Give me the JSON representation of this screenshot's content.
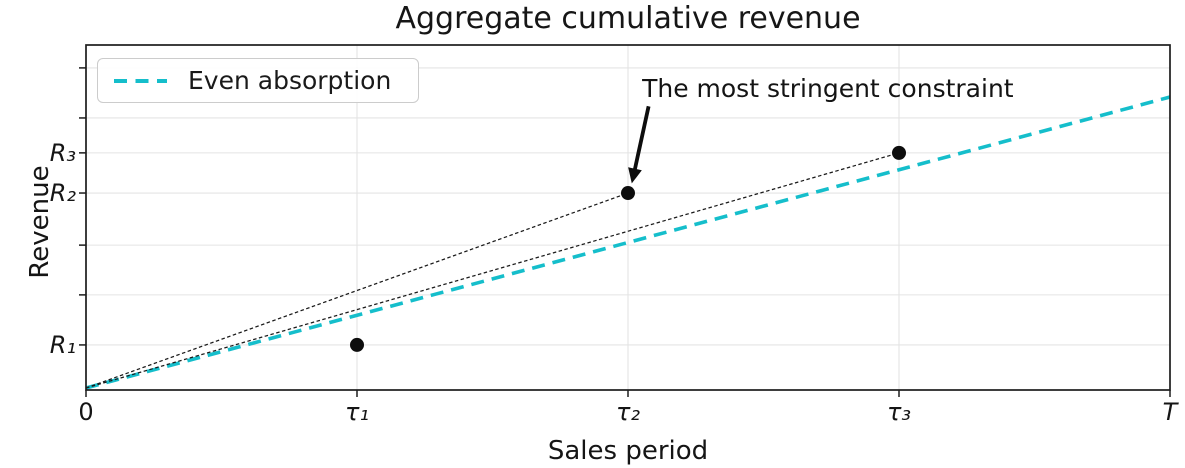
{
  "chart_data": {
    "type": "line",
    "title": "Aggregate cumulative revenue",
    "xlabel": "Sales period",
    "ylabel": "Revenue",
    "xlim": [
      0,
      1
    ],
    "ylim": [
      0,
      1.18
    ],
    "grid": true,
    "background": "#ffffff",
    "accent_color": "#15becb",
    "x_ticks": [
      {
        "value": 0.0,
        "label": "0"
      },
      {
        "value": 0.25,
        "label": "τ₁"
      },
      {
        "value": 0.5,
        "label": "τ₂"
      },
      {
        "value": 0.75,
        "label": "τ₃"
      },
      {
        "value": 1.0,
        "label": "T"
      }
    ],
    "y_ticks": [
      0.148,
      0.32,
      0.491,
      0.67,
      0.808,
      0.928,
      1.1
    ],
    "y_labeled_ticks": [
      {
        "value": 0.148,
        "label": "R₁"
      },
      {
        "value": 0.67,
        "label": "R₂"
      },
      {
        "value": 0.808,
        "label": "R₃"
      }
    ],
    "series": [
      {
        "name": "Even absorption",
        "style": "dashed-bold",
        "color": "#15becb",
        "x": [
          0,
          1
        ],
        "y": [
          0,
          1
        ]
      },
      {
        "name": "constraint ray through (τ₂, R₂)",
        "style": "dashed-thin",
        "color": "#1a1a1a",
        "x": [
          0,
          0.5
        ],
        "y": [
          0,
          0.67
        ]
      },
      {
        "name": "constraint ray through (τ₃, R₃)",
        "style": "dashed-thin",
        "color": "#1a1a1a",
        "x": [
          0,
          0.75
        ],
        "y": [
          0,
          0.808
        ]
      }
    ],
    "points": [
      {
        "x": 0.25,
        "y": 0.148,
        "label": "(τ₁, R₁)"
      },
      {
        "x": 0.5,
        "y": 0.67,
        "label": "(τ₂, R₂)"
      },
      {
        "x": 0.75,
        "y": 0.808,
        "label": "(τ₃, R₃)"
      }
    ],
    "legend": {
      "location": "upper left",
      "entries": [
        "Even absorption"
      ]
    },
    "annotation": {
      "text": "The most stringent constraint",
      "points_to": {
        "x": 0.5,
        "y": 0.67
      },
      "text_anchor": {
        "x": 0.513,
        "y": 1.079
      },
      "arrow_from": {
        "x": 0.519,
        "y": 0.968
      },
      "arrow_to": {
        "x": 0.5035,
        "y": 0.703
      }
    }
  }
}
